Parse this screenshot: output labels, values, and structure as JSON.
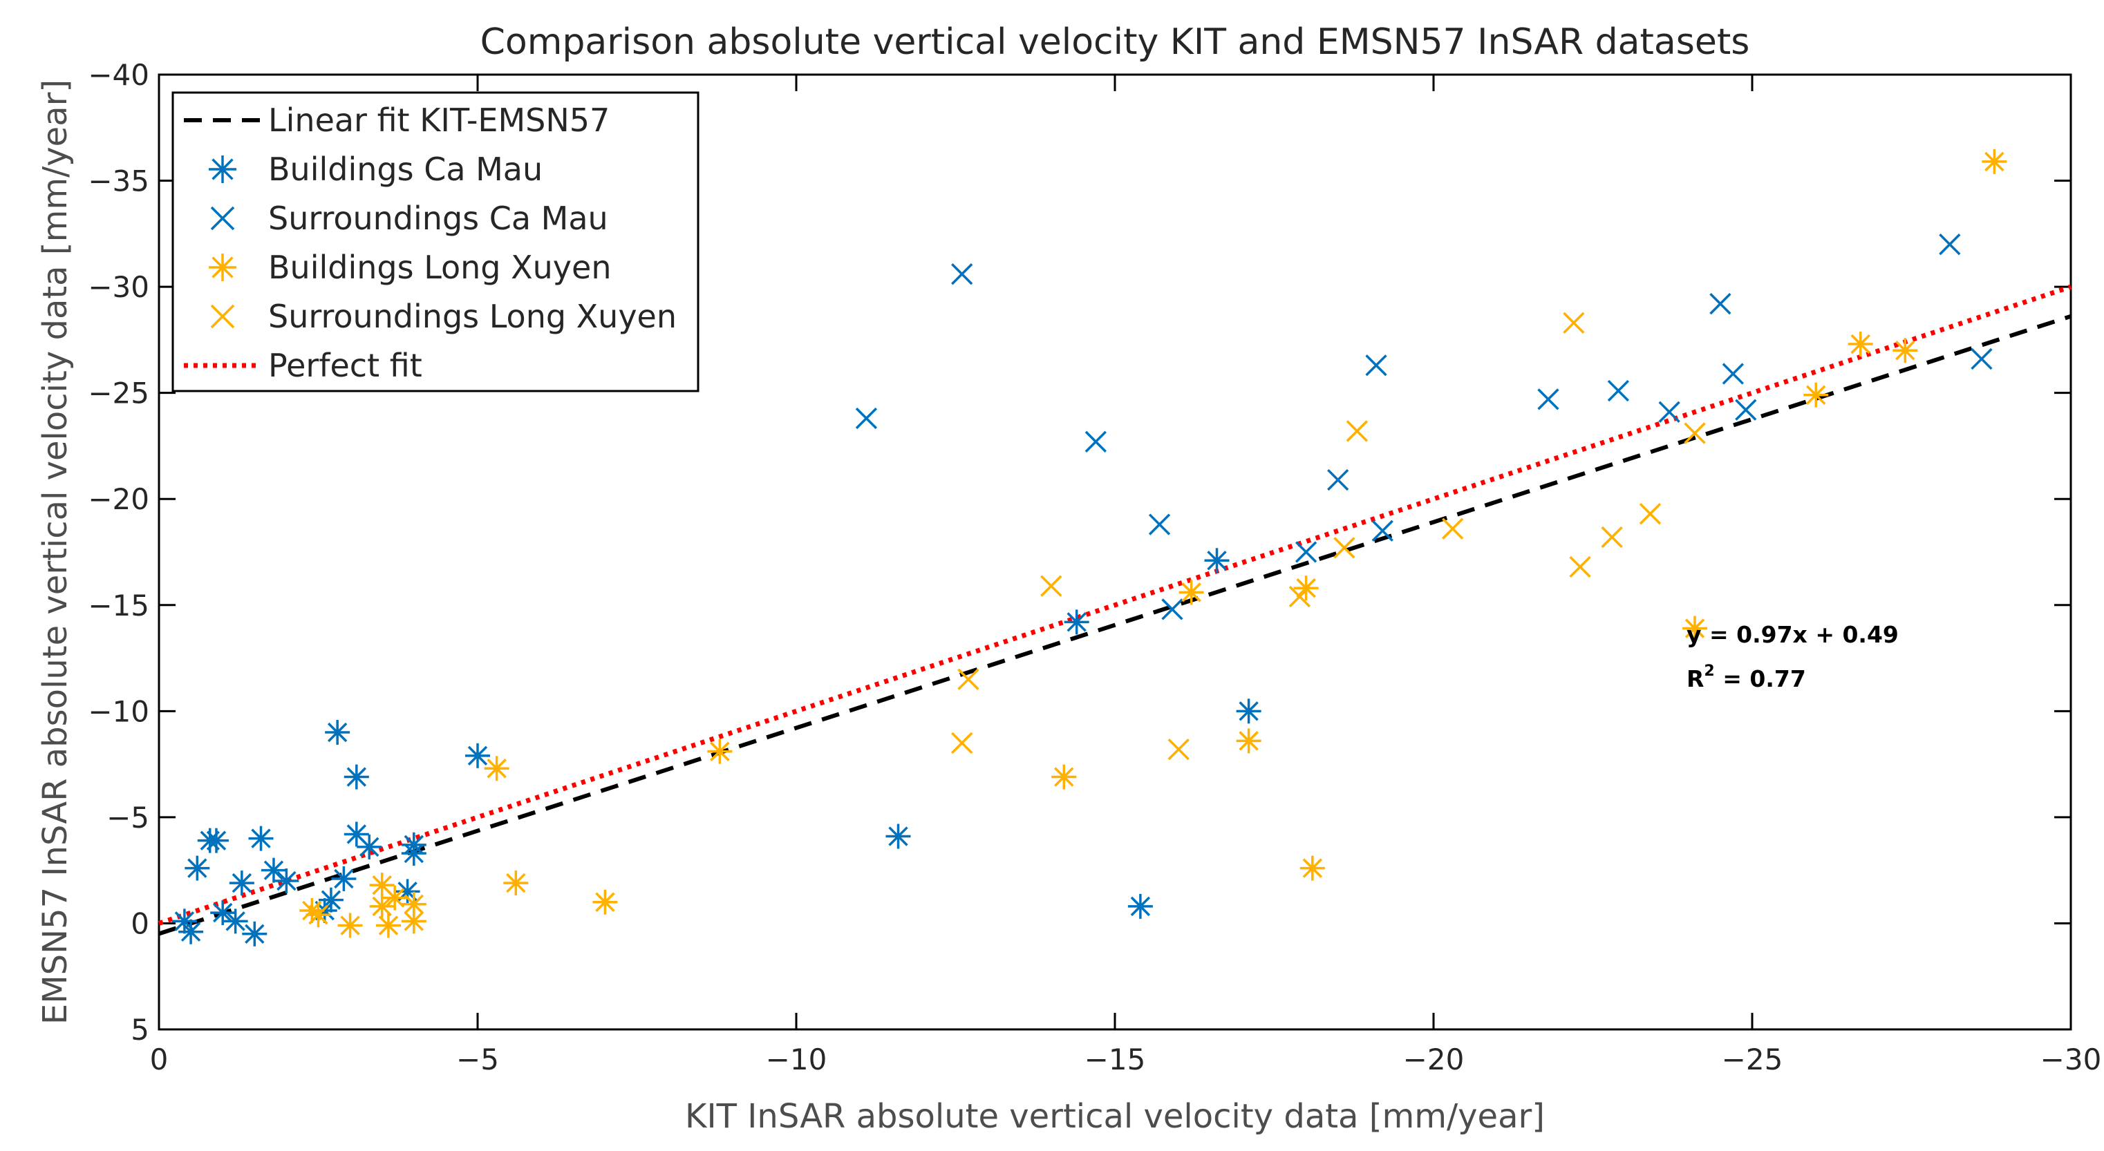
{
  "chart_data": {
    "type": "scatter",
    "title": "Comparison absolute vertical velocity KIT and EMSN57 InSAR datasets",
    "xlabel": "KIT InSAR absolute vertical velocity data [mm/year]",
    "ylabel": "EMSN57 InSAR absolute vertical velocity data [mm/year]",
    "xlim": [
      0,
      -30
    ],
    "ylim": [
      5,
      -40
    ],
    "xticks": [
      0,
      -5,
      -10,
      -15,
      -20,
      -25,
      -30
    ],
    "yticks": [
      -40,
      -35,
      -30,
      -25,
      -20,
      -15,
      -10,
      -5,
      0,
      5
    ],
    "xtick_labels": [
      "0",
      "−5",
      "−10",
      "−15",
      "−20",
      "−25",
      "−30"
    ],
    "ytick_labels": [
      "−40",
      "−35",
      "−30",
      "−25",
      "−20",
      "−15",
      "−10",
      "−5",
      "0",
      "5"
    ],
    "legend_position": "top-left",
    "colors": {
      "ca_mau": "#0072BD",
      "long_xuyen": "#FFB000",
      "linear_fit": "#000000",
      "perfect_fit": "#FF0000"
    },
    "series": [
      {
        "name": "Linear fit KIT-EMSN57",
        "kind": "line",
        "style": "dashed",
        "color": "#000000",
        "slope": 0.97,
        "intercept": 0.49,
        "x": [
          0,
          -30
        ]
      },
      {
        "name": "Buildings Ca Mau",
        "kind": "points",
        "marker": "asterisk",
        "color": "#0072BD",
        "points": [
          [
            -0.4,
            -0.1
          ],
          [
            -0.5,
            0.4
          ],
          [
            -0.6,
            -2.6
          ],
          [
            -0.8,
            -3.9
          ],
          [
            -0.9,
            -3.9
          ],
          [
            -1.0,
            -0.5
          ],
          [
            -1.2,
            -0.1
          ],
          [
            -1.3,
            -1.9
          ],
          [
            -1.5,
            0.5
          ],
          [
            -1.6,
            -4.0
          ],
          [
            -1.8,
            -2.5
          ],
          [
            -2.0,
            -2.0
          ],
          [
            -2.6,
            -0.6
          ],
          [
            -2.7,
            -1.1
          ],
          [
            -2.8,
            -9.0
          ],
          [
            -2.9,
            -2.1
          ],
          [
            -3.1,
            -4.2
          ],
          [
            -3.1,
            -6.9
          ],
          [
            -3.3,
            -3.6
          ],
          [
            -3.9,
            -1.5
          ],
          [
            -4.0,
            -3.3
          ],
          [
            -4.0,
            -3.7
          ],
          [
            -5.0,
            -7.9
          ],
          [
            -11.6,
            -4.1
          ],
          [
            -14.4,
            -14.2
          ],
          [
            -15.4,
            -0.8
          ],
          [
            -16.6,
            -17.1
          ],
          [
            -17.1,
            -10.0
          ]
        ]
      },
      {
        "name": "Surroundings Ca Mau",
        "kind": "points",
        "marker": "x",
        "color": "#0072BD",
        "points": [
          [
            -11.1,
            -23.8
          ],
          [
            -12.6,
            -30.6
          ],
          [
            -14.7,
            -22.7
          ],
          [
            -15.7,
            -18.8
          ],
          [
            -15.9,
            -14.8
          ],
          [
            -18.0,
            -17.5
          ],
          [
            -18.5,
            -20.9
          ],
          [
            -19.1,
            -26.3
          ],
          [
            -19.2,
            -18.5
          ],
          [
            -21.8,
            -24.7
          ],
          [
            -22.9,
            -25.1
          ],
          [
            -23.7,
            -24.1
          ],
          [
            -24.5,
            -29.2
          ],
          [
            -24.7,
            -25.9
          ],
          [
            -24.9,
            -24.2
          ],
          [
            -28.1,
            -32.0
          ],
          [
            -28.6,
            -26.6
          ]
        ]
      },
      {
        "name": "Buildings Long Xuyen",
        "kind": "points",
        "marker": "asterisk",
        "color": "#FFB000",
        "points": [
          [
            -2.4,
            -0.6
          ],
          [
            -2.5,
            -0.4
          ],
          [
            -3.0,
            0.1
          ],
          [
            -3.5,
            -1.8
          ],
          [
            -3.5,
            -0.8
          ],
          [
            -3.6,
            0.1
          ],
          [
            -3.7,
            -1.2
          ],
          [
            -4.0,
            -0.9
          ],
          [
            -4.0,
            -0.1
          ],
          [
            -5.3,
            -7.3
          ],
          [
            -5.6,
            -1.9
          ],
          [
            -7.0,
            -1.0
          ],
          [
            -8.8,
            -8.1
          ],
          [
            -14.2,
            -6.9
          ],
          [
            -16.2,
            -15.6
          ],
          [
            -17.1,
            -8.6
          ],
          [
            -18.0,
            -15.8
          ],
          [
            -18.1,
            -2.6
          ],
          [
            -24.1,
            -13.9
          ],
          [
            -26.0,
            -24.9
          ],
          [
            -26.7,
            -27.3
          ],
          [
            -27.4,
            -27.0
          ],
          [
            -28.8,
            -35.9
          ]
        ]
      },
      {
        "name": "Surroundings Long Xuyen",
        "kind": "points",
        "marker": "x",
        "color": "#FFB000",
        "points": [
          [
            -12.6,
            -8.5
          ],
          [
            -12.7,
            -11.5
          ],
          [
            -14.0,
            -15.9
          ],
          [
            -16.0,
            -8.2
          ],
          [
            -17.9,
            -15.4
          ],
          [
            -18.6,
            -17.7
          ],
          [
            -18.8,
            -23.2
          ],
          [
            -20.3,
            -18.6
          ],
          [
            -22.2,
            -28.3
          ],
          [
            -22.3,
            -16.8
          ],
          [
            -22.8,
            -18.2
          ],
          [
            -23.4,
            -19.3
          ],
          [
            -24.1,
            -23.1
          ]
        ]
      },
      {
        "name": "Perfect fit",
        "kind": "line",
        "style": "dotted",
        "color": "#FF0000",
        "slope": 1.0,
        "intercept": 0.0,
        "x": [
          0,
          -30
        ]
      }
    ],
    "annotations": {
      "equation": "y = 0.97x + 0.49",
      "r2_prefix": "R",
      "r2_sup": "2",
      "r2_value": " = 0.77"
    }
  }
}
